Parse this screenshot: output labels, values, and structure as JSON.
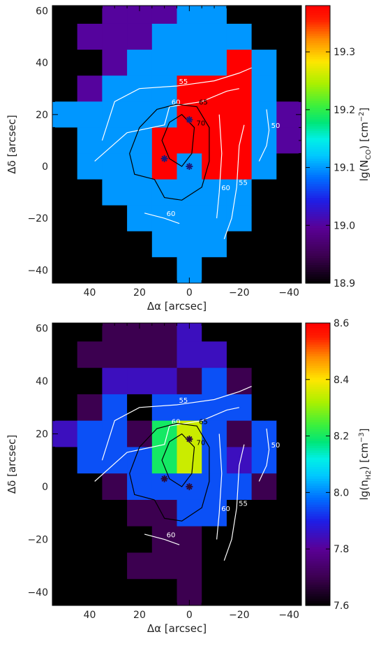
{
  "chart_data": [
    {
      "type": "heatmap",
      "xlabel": "Δα [arcsec]",
      "ylabel": "Δδ [arcsec]",
      "colorbar_label": "lg(N_CO) [cm^-2]",
      "colorbar_label_parts": {
        "main": "lg(N",
        "sub": "CO",
        "mid": ") [cm",
        "sup": "−2",
        "end": "]"
      },
      "xlim": [
        55,
        -45
      ],
      "ylim": [
        -45,
        62
      ],
      "xticks": [
        40,
        20,
        0,
        -20,
        -40
      ],
      "xtick_labels": [
        "40",
        "20",
        "0",
        "−20",
        "−40"
      ],
      "yticks": [
        -40,
        -20,
        0,
        20,
        40,
        60
      ],
      "ytick_labels": [
        "−40",
        "−20",
        "0",
        "20",
        "40",
        "60"
      ],
      "colorbar_range": [
        18.9,
        19.38
      ],
      "colorbar_ticks": [
        18.9,
        19.0,
        19.1,
        19.2,
        19.3
      ],
      "colorbar_tick_labels": [
        "18.9",
        "19.0",
        "19.1",
        "19.2",
        "19.3"
      ],
      "grid_x": [
        50,
        40,
        30,
        20,
        10,
        0,
        -10,
        -20,
        -30,
        -40
      ],
      "grid_y": [
        60,
        50,
        40,
        30,
        20,
        10,
        0,
        -10,
        -20,
        -30,
        -40
      ],
      "cell_values": [
        [
          18.9,
          18.9,
          19.0,
          19.0,
          19.0,
          19.1,
          19.1,
          18.9,
          18.9,
          18.9
        ],
        [
          18.9,
          19.0,
          19.0,
          19.0,
          19.1,
          19.1,
          19.1,
          19.1,
          18.9,
          18.9
        ],
        [
          18.9,
          18.9,
          19.0,
          19.1,
          19.1,
          19.1,
          19.1,
          19.38,
          19.1,
          18.9
        ],
        [
          18.9,
          19.0,
          19.1,
          19.1,
          19.1,
          19.38,
          19.38,
          19.38,
          19.1,
          18.9
        ],
        [
          19.1,
          19.1,
          19.1,
          19.1,
          19.1,
          19.38,
          19.38,
          19.38,
          19.1,
          19.0
        ],
        [
          18.9,
          19.1,
          19.1,
          19.1,
          19.38,
          19.38,
          19.38,
          19.38,
          19.1,
          19.0
        ],
        [
          18.9,
          19.1,
          19.1,
          19.1,
          19.38,
          19.1,
          19.38,
          19.38,
          19.1,
          18.9
        ],
        [
          18.9,
          18.9,
          19.1,
          19.1,
          19.1,
          19.1,
          19.1,
          19.1,
          18.9,
          18.9
        ],
        [
          18.9,
          18.9,
          18.9,
          19.1,
          19.1,
          19.1,
          19.1,
          19.1,
          18.9,
          18.9
        ],
        [
          18.9,
          18.9,
          18.9,
          18.9,
          19.1,
          19.1,
          19.1,
          18.9,
          18.9,
          18.9
        ],
        [
          18.9,
          18.9,
          18.9,
          18.9,
          18.9,
          19.1,
          18.9,
          18.9,
          18.9,
          18.9
        ]
      ]
    },
    {
      "type": "heatmap",
      "xlabel": "Δα [arcsec]",
      "ylabel": "Δδ [arcsec]",
      "colorbar_label": "lg(n_H2) [cm^-3]",
      "colorbar_label_parts": {
        "main": "lg(n",
        "sub": "H2",
        "mid": ") [cm",
        "sup": "−3",
        "end": "]"
      },
      "xlim": [
        55,
        -45
      ],
      "ylim": [
        -45,
        62
      ],
      "xticks": [
        40,
        20,
        0,
        -20,
        -40
      ],
      "xtick_labels": [
        "40",
        "20",
        "0",
        "−20",
        "−40"
      ],
      "yticks": [
        -40,
        -20,
        0,
        20,
        40,
        60
      ],
      "ytick_labels": [
        "−40",
        "−20",
        "0",
        "20",
        "40",
        "60"
      ],
      "colorbar_range": [
        7.6,
        8.6
      ],
      "colorbar_ticks": [
        7.6,
        7.8,
        8.0,
        8.2,
        8.4,
        8.6
      ],
      "colorbar_tick_labels": [
        "7.6",
        "7.8",
        "8.0",
        "8.2",
        "8.4",
        "8.6"
      ],
      "grid_x": [
        50,
        40,
        30,
        20,
        10,
        0,
        -10,
        -20,
        -30,
        -40
      ],
      "grid_y": [
        60,
        50,
        40,
        30,
        20,
        10,
        0,
        -10,
        -20,
        -30,
        -40
      ],
      "cell_values": [
        [
          7.6,
          7.6,
          7.7,
          7.7,
          7.7,
          7.85,
          7.6,
          7.6,
          7.6,
          7.6
        ],
        [
          7.6,
          7.7,
          7.7,
          7.7,
          7.7,
          7.85,
          7.85,
          7.6,
          7.6,
          7.6
        ],
        [
          7.6,
          7.6,
          7.85,
          7.85,
          7.85,
          7.7,
          7.95,
          7.7,
          7.6,
          7.6
        ],
        [
          7.6,
          7.7,
          7.95,
          7.6,
          7.95,
          7.95,
          7.95,
          7.95,
          7.6,
          7.6
        ],
        [
          7.85,
          7.95,
          7.95,
          7.7,
          8.2,
          8.35,
          7.95,
          7.7,
          7.95,
          7.6
        ],
        [
          7.6,
          7.95,
          7.95,
          7.95,
          8.2,
          8.35,
          7.95,
          7.85,
          7.95,
          7.6
        ],
        [
          7.6,
          7.6,
          7.7,
          7.95,
          7.95,
          7.95,
          7.95,
          7.95,
          7.7,
          7.6
        ],
        [
          7.6,
          7.6,
          7.6,
          7.7,
          7.7,
          7.95,
          7.95,
          7.6,
          7.6,
          7.6
        ],
        [
          7.6,
          7.6,
          7.6,
          7.6,
          7.7,
          7.7,
          7.6,
          7.6,
          7.6,
          7.6
        ],
        [
          7.6,
          7.6,
          7.6,
          7.7,
          7.7,
          7.7,
          7.6,
          7.6,
          7.6,
          7.6
        ],
        [
          7.6,
          7.6,
          7.6,
          7.6,
          7.6,
          7.7,
          7.6,
          7.6,
          7.6,
          7.6
        ]
      ]
    }
  ],
  "contours": {
    "white_levels": [
      {
        "label": "50",
        "points": [
          [
            -28,
            2
          ],
          [
            -31,
            8
          ],
          [
            -32,
            14
          ],
          [
            -31,
            22
          ]
        ]
      },
      {
        "label": "55",
        "points": [
          [
            35,
            10
          ],
          [
            30,
            25
          ],
          [
            20,
            30
          ],
          [
            5,
            31
          ],
          [
            -10,
            33
          ],
          [
            -20,
            36
          ],
          [
            -25,
            38
          ]
        ]
      },
      {
        "label": "55",
        "points": [
          [
            -22,
            16
          ],
          [
            -20,
            8
          ],
          [
            -19,
            -8
          ],
          [
            -17,
            -20
          ],
          [
            -14,
            -28
          ]
        ]
      },
      {
        "label": "60",
        "points": [
          [
            38,
            2
          ],
          [
            25,
            13
          ],
          [
            10,
            16
          ],
          [
            8,
            23
          ],
          [
            -5,
            25
          ],
          [
            -15,
            29
          ],
          [
            -20,
            30
          ]
        ]
      },
      {
        "label": "60",
        "points": [
          [
            -12,
            20
          ],
          [
            -13,
            5
          ],
          [
            -12,
            -10
          ],
          [
            -11,
            -20
          ]
        ]
      },
      {
        "label": "60",
        "points": [
          [
            18,
            -18
          ],
          [
            10,
            -20
          ],
          [
            4,
            -22
          ]
        ]
      }
    ],
    "black_levels": [
      {
        "label": "65",
        "points": [
          [
            14,
            -5
          ],
          [
            22,
            -3
          ],
          [
            24,
            5
          ],
          [
            20,
            15
          ],
          [
            13,
            22
          ],
          [
            5,
            24
          ],
          [
            -3,
            23
          ],
          [
            -8,
            15
          ],
          [
            -8,
            2
          ],
          [
            -5,
            -8
          ],
          [
            3,
            -13
          ],
          [
            10,
            -12
          ],
          [
            14,
            -5
          ]
        ]
      },
      {
        "label": "70",
        "points": [
          [
            8,
            3
          ],
          [
            11,
            10
          ],
          [
            8,
            17
          ],
          [
            3,
            20
          ],
          [
            -2,
            15
          ],
          [
            -1,
            5
          ],
          [
            3,
            0
          ],
          [
            8,
            3
          ]
        ]
      }
    ]
  },
  "stars": [
    {
      "x": 0,
      "y": 18
    },
    {
      "x": 10,
      "y": 3
    },
    {
      "x": 0,
      "y": 0
    }
  ],
  "colors": {
    "frame": "#000000",
    "white_contour": "#ffffff",
    "black_contour": "#000000",
    "star_top": "#1a1a7a",
    "star_bottom": "#2a0a3a"
  }
}
